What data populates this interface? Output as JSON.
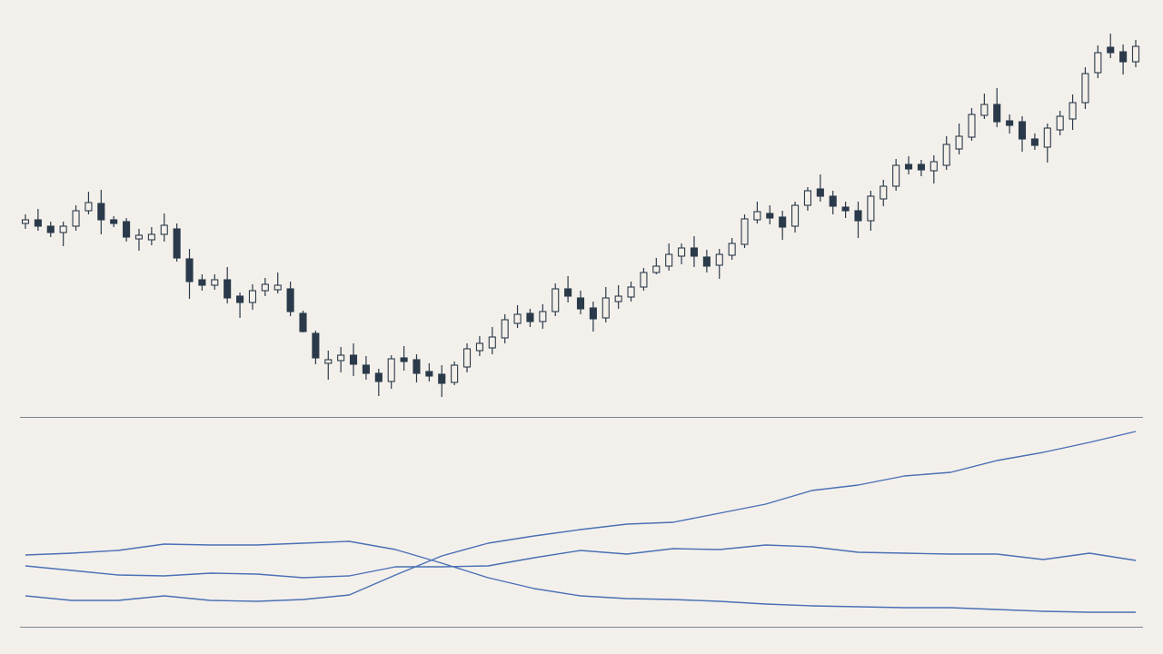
{
  "chart_data": [
    {
      "type": "candlestick",
      "ylim": [
        0,
        460
      ],
      "up_color": "#f3efe9",
      "down_color": "#2b3a4a",
      "edge_color": "#2b3a4a",
      "open": [
        214,
        218,
        211,
        204,
        211,
        228,
        236,
        218,
        216,
        197,
        196,
        202,
        208,
        175,
        152,
        146,
        152,
        134,
        127,
        140,
        141,
        142,
        115,
        93,
        60,
        63,
        69,
        58,
        49,
        40,
        66,
        64,
        51,
        48,
        39,
        56,
        74,
        77,
        88,
        104,
        115,
        106,
        117,
        142,
        132,
        121,
        110,
        128,
        133,
        144,
        160,
        167,
        178,
        187,
        177,
        168,
        179,
        191,
        218,
        225,
        221,
        211,
        234,
        252,
        244,
        232,
        228,
        217,
        241,
        255,
        279,
        279,
        272,
        278,
        296,
        309,
        333,
        345,
        327,
        326,
        307,
        298,
        317,
        329,
        347,
        380,
        408,
        403,
        392
      ],
      "high": [
        224,
        230,
        216,
        216,
        234,
        249,
        251,
        222,
        220,
        208,
        210,
        225,
        214,
        186,
        158,
        158,
        166,
        138,
        147,
        154,
        160,
        150,
        118,
        96,
        74,
        78,
        82,
        68,
        54,
        69,
        79,
        70,
        60,
        58,
        62,
        82,
        90,
        100,
        114,
        124,
        120,
        125,
        148,
        156,
        140,
        128,
        144,
        146,
        150,
        165,
        176,
        192,
        192,
        200,
        185,
        186,
        198,
        224,
        238,
        234,
        228,
        238,
        254,
        268,
        250,
        238,
        238,
        250,
        262,
        285,
        288,
        284,
        289,
        310,
        324,
        341,
        357,
        363,
        334,
        332,
        313,
        324,
        338,
        356,
        386,
        410,
        423,
        411,
        416
      ],
      "low": [
        208,
        206,
        199,
        189,
        206,
        224,
        202,
        210,
        194,
        184,
        190,
        194,
        172,
        131,
        140,
        141,
        126,
        110,
        119,
        134,
        137,
        112,
        94,
        59,
        42,
        50,
        46,
        42,
        24,
        32,
        52,
        39,
        40,
        23,
        36,
        50,
        68,
        70,
        82,
        99,
        100,
        98,
        112,
        127,
        114,
        95,
        105,
        120,
        128,
        140,
        158,
        162,
        169,
        166,
        160,
        153,
        174,
        187,
        214,
        213,
        196,
        204,
        228,
        238,
        224,
        220,
        198,
        206,
        233,
        250,
        268,
        266,
        258,
        273,
        290,
        305,
        329,
        320,
        313,
        293,
        295,
        281,
        311,
        317,
        340,
        374,
        396,
        378,
        386
      ],
      "close": [
        218,
        211,
        204,
        211,
        228,
        237,
        218,
        214,
        199,
        201,
        202,
        212,
        176,
        150,
        146,
        152,
        132,
        127,
        140,
        147,
        146,
        117,
        95,
        66,
        64,
        69,
        59,
        49,
        40,
        65,
        62,
        49,
        46,
        38,
        58,
        76,
        82,
        89,
        108,
        114,
        106,
        117,
        142,
        134,
        120,
        109,
        132,
        134,
        144,
        160,
        167,
        180,
        187,
        178,
        167,
        180,
        192,
        219,
        227,
        220,
        210,
        234,
        250,
        244,
        233,
        228,
        217,
        244,
        255,
        278,
        274,
        273,
        282,
        301,
        310,
        334,
        345,
        326,
        322,
        307,
        300,
        319,
        332,
        347,
        379,
        402,
        402,
        392,
        409
      ]
    },
    {
      "type": "line",
      "ylim": [
        0,
        230
      ],
      "series": [
        {
          "color": "#4a6fb5",
          "values": [
            79,
            81,
            84,
            91,
            90,
            90,
            92,
            94,
            85,
            70,
            54,
            42,
            34,
            31,
            30,
            28,
            25,
            23,
            22,
            21,
            21,
            19,
            17,
            16,
            16
          ]
        },
        {
          "color": "#4a6fb5",
          "values": [
            67,
            62,
            57,
            56,
            59,
            58,
            54,
            56,
            66,
            66,
            67,
            76,
            84,
            80,
            86,
            85,
            90,
            88,
            82,
            81,
            80,
            80,
            74,
            81,
            73
          ]
        },
        {
          "color": "#4a6fb5",
          "values": [
            34,
            29,
            29,
            34,
            29,
            28,
            30,
            35,
            57,
            78,
            92,
            100,
            107,
            113,
            115,
            125,
            135,
            150,
            156,
            166,
            170,
            183,
            192,
            203,
            215
          ]
        }
      ]
    }
  ]
}
